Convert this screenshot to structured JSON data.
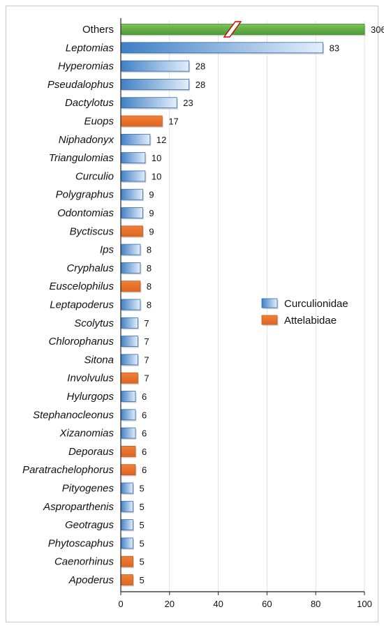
{
  "chart_data": {
    "type": "bar",
    "orientation": "horizontal",
    "categories": [
      "Others",
      "Leptomias",
      "Hyperomias",
      "Pseudalophus",
      "Dactylotus",
      "Euops",
      "Niphadonyx",
      "Triangulomias",
      "Curculio",
      "Polygraphus",
      "Odontomias",
      "Byctiscus",
      "Ips",
      "Cryphalus",
      "Euscelophilus",
      "Leptapoderus",
      "Scolytus",
      "Chlorophanus",
      "Sitona",
      "Involvulus",
      "Hylurgops",
      "Stephanocleonus",
      "Xizanomias",
      "Deporaus",
      "Paratrachelophorus",
      "Pityogenes",
      "Asproparthenis",
      "Geotragus",
      "Phytoscaphus",
      "Caenorhinus",
      "Apoderus"
    ],
    "values": [
      306,
      83,
      28,
      28,
      23,
      17,
      12,
      10,
      10,
      9,
      9,
      9,
      8,
      8,
      8,
      8,
      7,
      7,
      7,
      7,
      6,
      6,
      6,
      6,
      6,
      5,
      5,
      5,
      5,
      5,
      5
    ],
    "families": [
      "Others",
      "Curculionidae",
      "Curculionidae",
      "Curculionidae",
      "Curculionidae",
      "Attelabidae",
      "Curculionidae",
      "Curculionidae",
      "Curculionidae",
      "Curculionidae",
      "Curculionidae",
      "Attelabidae",
      "Curculionidae",
      "Curculionidae",
      "Attelabidae",
      "Curculionidae",
      "Curculionidae",
      "Curculionidae",
      "Curculionidae",
      "Attelabidae",
      "Curculionidae",
      "Curculionidae",
      "Curculionidae",
      "Attelabidae",
      "Attelabidae",
      "Curculionidae",
      "Curculionidae",
      "Curculionidae",
      "Curculionidae",
      "Attelabidae",
      "Attelabidae"
    ],
    "italic_categories": false,
    "xlim": [
      0,
      100
    ],
    "xticks": [
      0,
      20,
      40,
      60,
      80,
      100
    ],
    "axis_break": true,
    "legend_position": "right-middle",
    "title": "",
    "xlabel": "",
    "ylabel": "",
    "grid": false
  },
  "legend": {
    "items": [
      {
        "label": "Curculionidae",
        "family": "Curculionidae"
      },
      {
        "label": "Attelabidae",
        "family": "Attelabidae"
      }
    ]
  },
  "colors": {
    "Curculionidae": "#4a86c8",
    "Curculionidae_light": "#dbe9f8",
    "Curculionidae_edge": "#2f6bb0",
    "Attelabidae": "#e8702a",
    "Attelabidae_edge": "#c65a1a",
    "Others": "#6ab04c",
    "Others_edge": "#3e8e2a",
    "axis": "#222222",
    "gridline": "#cfcfcf",
    "break": "#cc0000"
  }
}
